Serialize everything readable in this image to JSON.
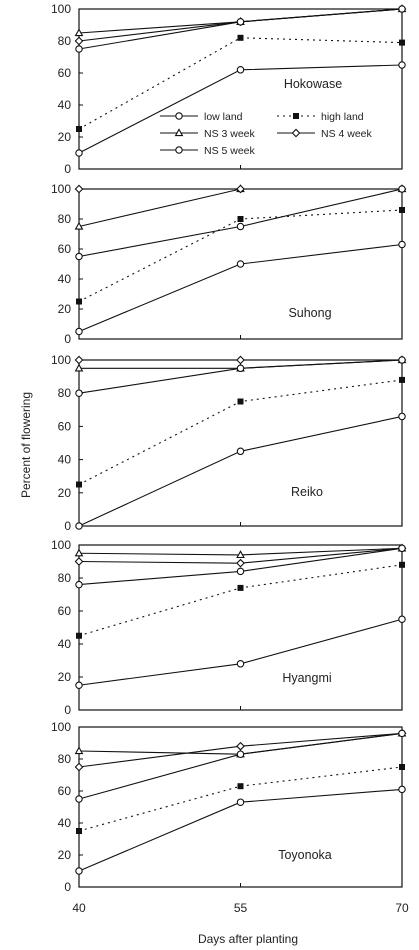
{
  "figure": {
    "ylabel": "Percent of flowering",
    "xlabel": "Days after planting"
  },
  "chart_data": {
    "type": "line",
    "x": [
      40,
      55,
      70
    ],
    "x_tick_labels": [
      "40",
      "55",
      "70"
    ],
    "ylim": [
      0,
      100
    ],
    "y_ticks": [
      0,
      20,
      40,
      60,
      80,
      100
    ],
    "xlabel": "Days after planting",
    "ylabel": "Percent of flowering",
    "legend": [
      {
        "key": "low_land",
        "label": "low land"
      },
      {
        "key": "high_land",
        "label": "high land"
      },
      {
        "key": "ns3",
        "label": "NS 3 week"
      },
      {
        "key": "ns4",
        "label": "NS 4 week"
      },
      {
        "key": "ns5",
        "label": "NS 5 week"
      }
    ],
    "panels": [
      {
        "label": "Hokowase",
        "series": [
          {
            "key": "low_land",
            "values": [
              10,
              62,
              65
            ]
          },
          {
            "key": "high_land",
            "values": [
              25,
              82,
              79
            ]
          },
          {
            "key": "ns3",
            "values": [
              85,
              92,
              100
            ]
          },
          {
            "key": "ns4",
            "values": [
              80,
              92,
              100
            ]
          },
          {
            "key": "ns5",
            "values": [
              75,
              92,
              100
            ]
          }
        ]
      },
      {
        "label": "Suhong",
        "series": [
          {
            "key": "low_land",
            "values": [
              5,
              50,
              63
            ]
          },
          {
            "key": "high_land",
            "values": [
              25,
              80,
              86
            ]
          },
          {
            "key": "ns3",
            "values": [
              75,
              100,
              100
            ]
          },
          {
            "key": "ns4",
            "values": [
              100,
              100,
              100
            ]
          },
          {
            "key": "ns5",
            "values": [
              55,
              75,
              100
            ]
          }
        ]
      },
      {
        "label": "Reiko",
        "series": [
          {
            "key": "low_land",
            "values": [
              0,
              45,
              66
            ]
          },
          {
            "key": "high_land",
            "values": [
              25,
              75,
              88
            ]
          },
          {
            "key": "ns3",
            "values": [
              95,
              95,
              100
            ]
          },
          {
            "key": "ns4",
            "values": [
              100,
              100,
              100
            ]
          },
          {
            "key": "ns5",
            "values": [
              80,
              95,
              100
            ]
          }
        ]
      },
      {
        "label": "Hyangmi",
        "series": [
          {
            "key": "low_land",
            "values": [
              15,
              28,
              55
            ]
          },
          {
            "key": "high_land",
            "values": [
              45,
              74,
              88
            ]
          },
          {
            "key": "ns3",
            "values": [
              95,
              94,
              98
            ]
          },
          {
            "key": "ns4",
            "values": [
              90,
              89,
              98
            ]
          },
          {
            "key": "ns5",
            "values": [
              76,
              84,
              98
            ]
          }
        ]
      },
      {
        "label": "Toyonoka",
        "series": [
          {
            "key": "low_land",
            "values": [
              10,
              53,
              61
            ]
          },
          {
            "key": "high_land",
            "values": [
              35,
              63,
              75
            ]
          },
          {
            "key": "ns3",
            "values": [
              85,
              83,
              96
            ]
          },
          {
            "key": "ns4",
            "values": [
              75,
              88,
              96
            ]
          },
          {
            "key": "ns5",
            "values": [
              55,
              83,
              96
            ]
          }
        ]
      }
    ]
  }
}
